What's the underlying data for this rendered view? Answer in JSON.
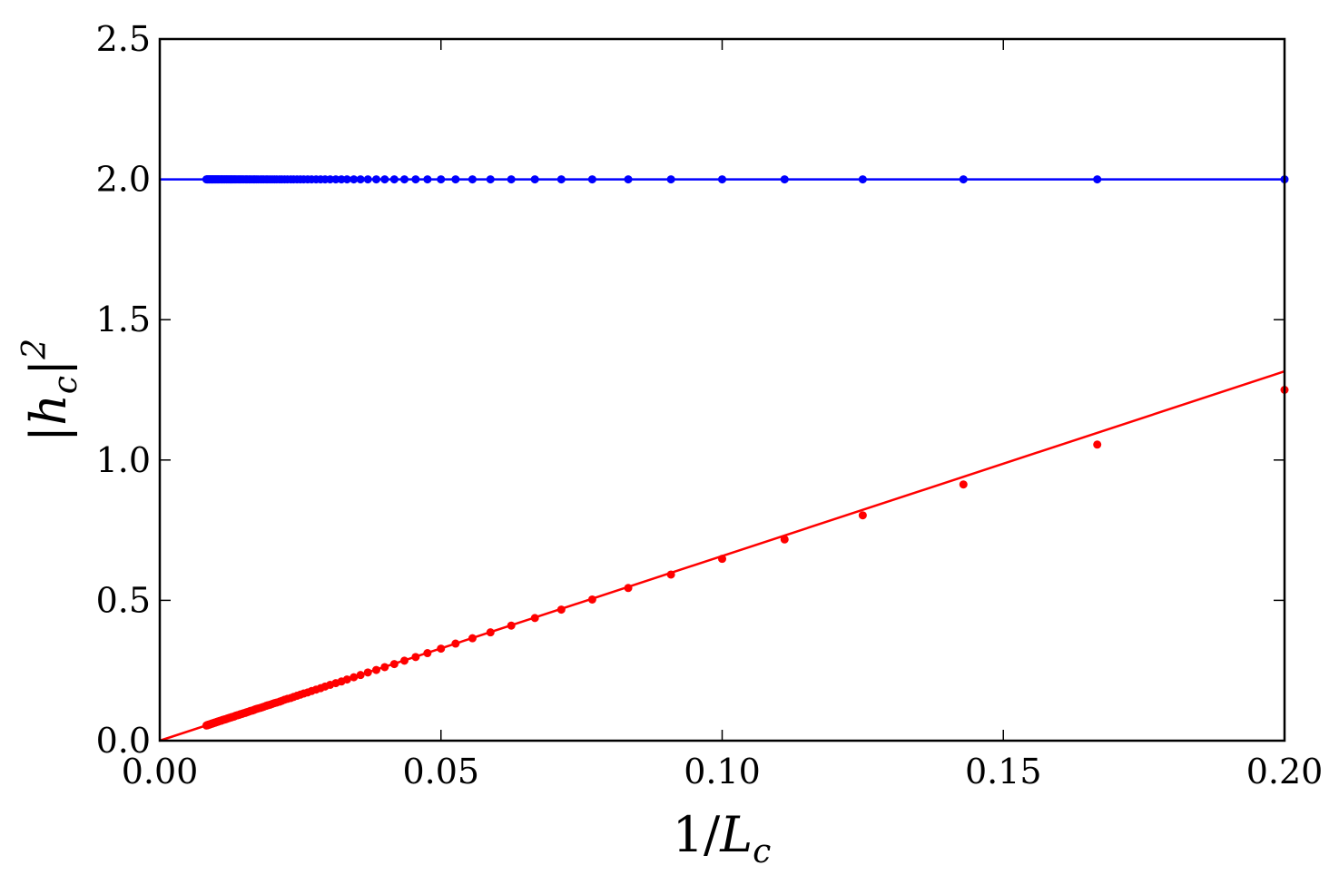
{
  "chart_data": {
    "type": "scatter",
    "title": "",
    "xlabel": "1/L_c",
    "ylabel": "|h_c|^2",
    "xlim": [
      0.0,
      0.2
    ],
    "ylim": [
      0.0,
      2.5
    ],
    "xticks": [
      "0.00",
      "0.05",
      "0.10",
      "0.15",
      "0.20"
    ],
    "yticks": [
      "0.0",
      "0.5",
      "1.0",
      "1.5",
      "2.0",
      "2.5"
    ],
    "grid": false,
    "legend": "none",
    "series": [
      {
        "color": "#0000ff",
        "points_x": [
          0.2,
          0.1667,
          0.1429,
          0.125,
          0.1111,
          0.1,
          0.0909,
          0.0833,
          0.0769,
          0.0714,
          0.0667,
          0.0625,
          0.0588,
          0.0556,
          0.0526,
          0.05,
          0.0476,
          0.0455,
          0.0435,
          0.0417,
          0.04,
          0.0385,
          0.037,
          0.0357,
          0.0345,
          0.0333,
          0.0323,
          0.0313,
          0.0303,
          0.0294,
          0.0286,
          0.0278,
          0.027,
          0.0263,
          0.0256,
          0.025,
          0.0244,
          0.0238,
          0.0233,
          0.0227,
          0.0222,
          0.0217,
          0.0213,
          0.0208,
          0.0204,
          0.02,
          0.0196,
          0.0192,
          0.0189,
          0.0185,
          0.0182,
          0.0179,
          0.0175,
          0.0172,
          0.0169,
          0.0167,
          0.0164,
          0.0161,
          0.0159,
          0.0156,
          0.0154,
          0.0152,
          0.0149,
          0.0147,
          0.0145,
          0.0143,
          0.0141,
          0.0139,
          0.0137,
          0.0135,
          0.0133,
          0.0132,
          0.013,
          0.0128,
          0.0127,
          0.0125,
          0.0123,
          0.0122,
          0.012,
          0.0119,
          0.0118,
          0.0116,
          0.0115,
          0.0114,
          0.0112,
          0.0111,
          0.011,
          0.0109,
          0.0108,
          0.0106,
          0.0105,
          0.0104,
          0.0103,
          0.0102,
          0.0101,
          0.01,
          0.0099,
          0.0098,
          0.0097,
          0.0096,
          0.0095,
          0.0094,
          0.0093,
          0.0093,
          0.0092,
          0.0091,
          0.009,
          0.0089,
          0.0088,
          0.0088,
          0.0087,
          0.0086,
          0.0085,
          0.0085,
          0.0084,
          0.0083
        ],
        "points_y_constant": 2.0,
        "fit_line": {
          "x": [
            0.0,
            0.2
          ],
          "y": [
            2.0,
            2.0
          ]
        }
      },
      {
        "color": "#ff0000",
        "points_x": [
          0.2,
          0.1667,
          0.1429,
          0.125,
          0.1111,
          0.1,
          0.0909,
          0.0833,
          0.0769,
          0.0714,
          0.0667,
          0.0625,
          0.0588,
          0.0556,
          0.0526,
          0.05,
          0.0476,
          0.0455,
          0.0435,
          0.0417,
          0.04,
          0.0385,
          0.037,
          0.0357,
          0.0345,
          0.0333,
          0.0323,
          0.0313,
          0.0303,
          0.0294,
          0.0286,
          0.0278,
          0.027,
          0.0263,
          0.0256,
          0.025,
          0.0244,
          0.0238,
          0.0233,
          0.0227,
          0.0222,
          0.0217,
          0.0213,
          0.0208,
          0.0204,
          0.02,
          0.0196,
          0.0192,
          0.0189,
          0.0185,
          0.0182,
          0.0179,
          0.0175,
          0.0172,
          0.0169,
          0.0167,
          0.0164,
          0.0161,
          0.0159,
          0.0156,
          0.0154,
          0.0152,
          0.0149,
          0.0147,
          0.0145,
          0.0143,
          0.0141,
          0.0139,
          0.0137,
          0.0135,
          0.0133,
          0.0132,
          0.013,
          0.0128,
          0.0127,
          0.0125,
          0.0123,
          0.0122,
          0.012,
          0.0119,
          0.0118,
          0.0116,
          0.0115,
          0.0114,
          0.0112,
          0.0111,
          0.011,
          0.0109,
          0.0108,
          0.0106,
          0.0105,
          0.0104,
          0.0103,
          0.0102,
          0.0101,
          0.01,
          0.0099,
          0.0098,
          0.0097,
          0.0096,
          0.0095,
          0.0094,
          0.0093,
          0.0093,
          0.0092,
          0.0091,
          0.009,
          0.0089,
          0.0088,
          0.0088,
          0.0087,
          0.0086,
          0.0085,
          0.0085,
          0.0084,
          0.0083
        ],
        "points_y": [
          1.25,
          1.055,
          0.913,
          0.803,
          0.717,
          0.648,
          0.592,
          0.544,
          0.503,
          0.467,
          0.437,
          0.41,
          0.386,
          0.365,
          0.346,
          0.328,
          0.312,
          0.298,
          0.285,
          0.273,
          0.262,
          0.252,
          0.243,
          0.234,
          0.226,
          0.218,
          0.211,
          0.205,
          0.199,
          0.193,
          0.187,
          0.182,
          0.177,
          0.172,
          0.168,
          0.164,
          0.16,
          0.156,
          0.152,
          0.149,
          0.146,
          0.142,
          0.139,
          0.136,
          0.134,
          0.131,
          0.128,
          0.126,
          0.124,
          0.121,
          0.119,
          0.117,
          0.115,
          0.113,
          0.111,
          0.109,
          0.107,
          0.106,
          0.104,
          0.102,
          0.101,
          0.099,
          0.098,
          0.096,
          0.095,
          0.094,
          0.092,
          0.091,
          0.09,
          0.089,
          0.087,
          0.086,
          0.085,
          0.084,
          0.083,
          0.082,
          0.081,
          0.08,
          0.079,
          0.078,
          0.077,
          0.076,
          0.075,
          0.075,
          0.074,
          0.073,
          0.072,
          0.071,
          0.071,
          0.07,
          0.069,
          0.068,
          0.068,
          0.067,
          0.066,
          0.066,
          0.065,
          0.064,
          0.064,
          0.063,
          0.062,
          0.062,
          0.061,
          0.061,
          0.06,
          0.06,
          0.059,
          0.058,
          0.058,
          0.057,
          0.057,
          0.056,
          0.056,
          0.055,
          0.055,
          0.054
        ],
        "fit_line": {
          "x": [
            0.0,
            0.2
          ],
          "y": [
            0.0,
            1.316
          ]
        }
      }
    ]
  }
}
